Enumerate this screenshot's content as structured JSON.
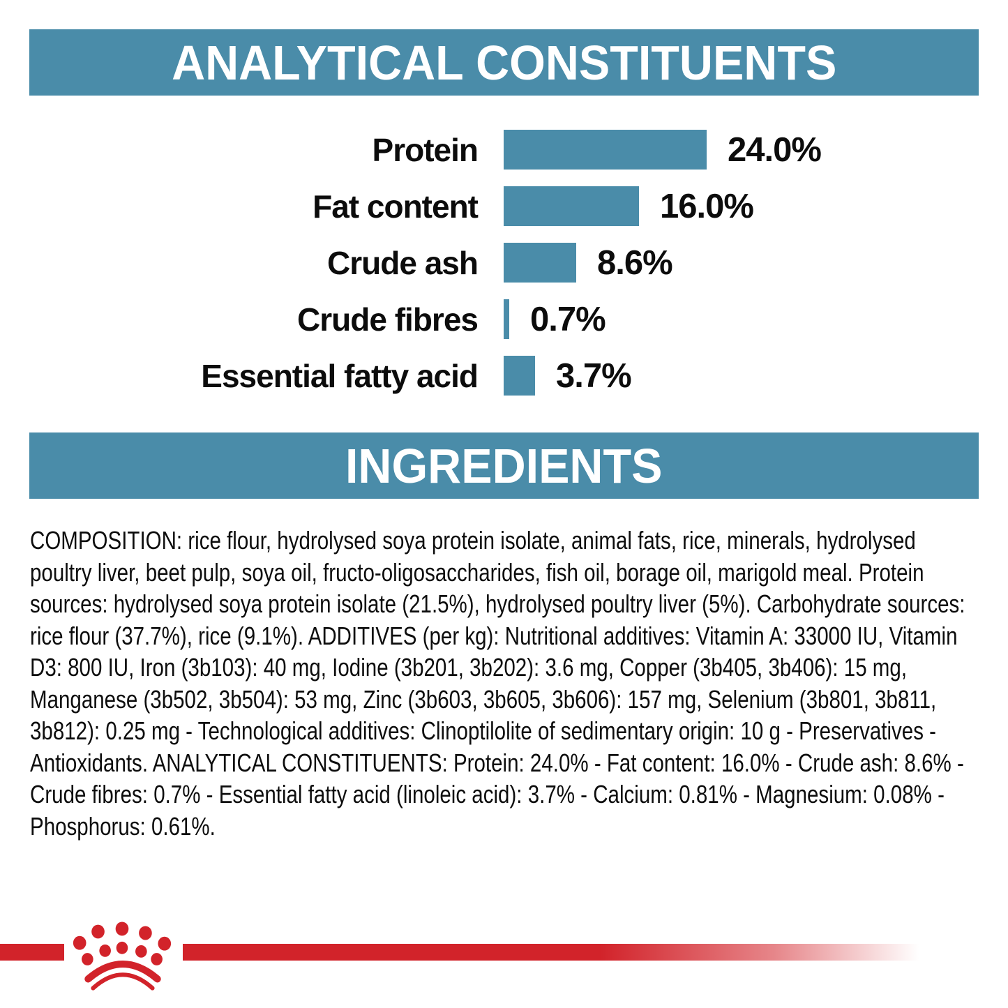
{
  "banners": {
    "analytical": "ANALYTICAL CONSTITUENTS",
    "ingredients": "INGREDIENTS"
  },
  "chart_data": {
    "type": "bar",
    "orientation": "horizontal",
    "title": "ANALYTICAL CONSTITUENTS",
    "categories": [
      "Protein",
      "Fat content",
      "Crude ash",
      "Crude fibres",
      "Essential fatty acid"
    ],
    "values": [
      24.0,
      16.0,
      8.6,
      0.7,
      3.7
    ],
    "value_labels": [
      "24.0%",
      "16.0%",
      "8.6%",
      "0.7%",
      "3.7%"
    ],
    "unit": "%",
    "xlim": [
      0,
      24
    ],
    "grid": "off",
    "legend": "none",
    "bar_color": "#4A8CA9",
    "value_label_position": "right of bar"
  },
  "ingredients": {
    "text": "COMPOSITION: rice flour, hydrolysed soya protein isolate, animal fats, rice, minerals, hydrolysed poultry liver, beet pulp, soya oil, fructo-oligosaccharides, fish oil, borage oil, marigold meal. Protein sources: hydrolysed soya protein isolate (21.5%), hydrolysed poultry liver (5%). Carbohydrate sources: rice flour (37.7%), rice (9.1%). ADDITIVES (per kg): Nutritional additives: Vitamin A: 33000 IU, Vitamin D3: 800 IU, Iron (3b103): 40 mg, Iodine (3b201, 3b202): 3.6 mg, Copper (3b405, 3b406): 15 mg, Manganese (3b502, 3b504): 53 mg, Zinc (3b603, 3b605, 3b606): 157 mg, Selenium (3b801, 3b811, 3b812): 0.25 mg - Technological additives: Clinoptilolite of sedimentary origin: 10 g - Preservatives - Antioxidants. ANALYTICAL CONSTITUENTS: Protein: 24.0% - Fat content: 16.0% - Crude ash: 8.6% - Crude fibres: 0.7% - Essential fatty acid (linoleic acid): 3.7% - Calcium: 0.81% - Magnesium: 0.08% - Phosphorus: 0.61%."
  },
  "logo": {
    "name": "royal-canin-crown-emblem"
  },
  "colors": {
    "teal": "#4A8CA9",
    "red": "#D2232A",
    "text": "#0d0d0d",
    "background": "#ffffff"
  }
}
